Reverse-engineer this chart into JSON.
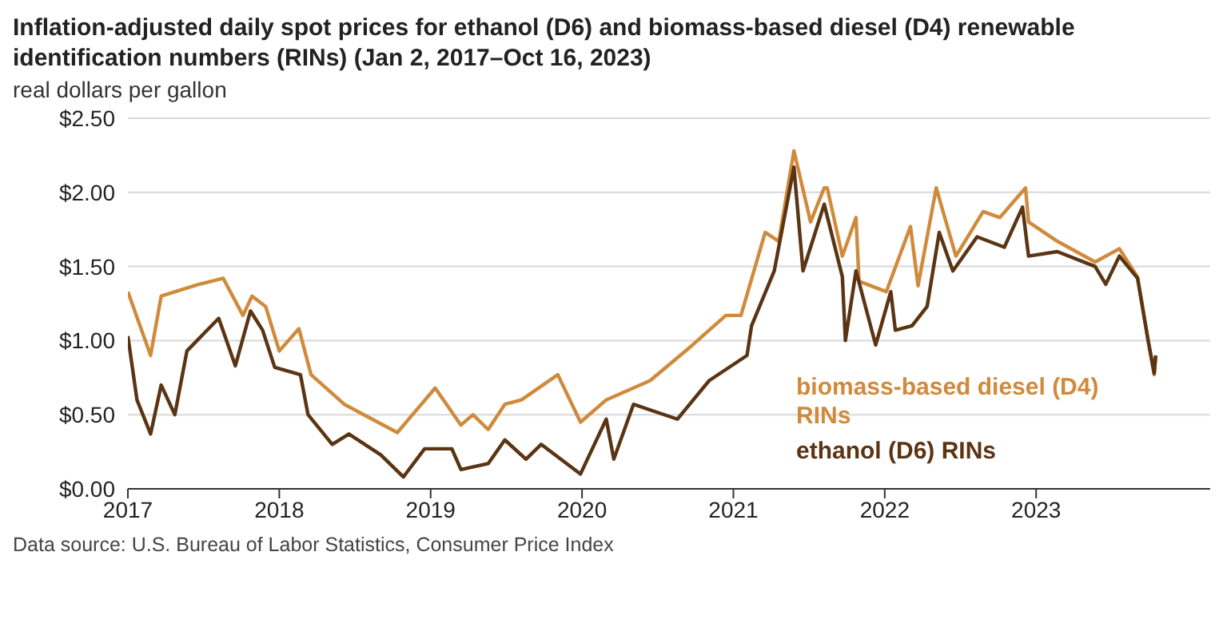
{
  "chart_data": {
    "type": "line",
    "title": "Inflation-adjusted daily spot prices for ethanol (D6) and biomass-based diesel (D4) renewable identification numbers (RINs) (Jan 2, 2017–Oct 16, 2023)",
    "ylabel": "real dollars per gallon",
    "annotations": [
      "Data source: U.S. Bureau of Labor Statistics, Consumer Price Index"
    ],
    "xlim": [
      2017,
      2024.15
    ],
    "xticks": [
      2017,
      2018,
      2019,
      2020,
      2021,
      2022,
      2023
    ],
    "ylim": [
      0,
      2.5
    ],
    "yticks": [
      {
        "value": 0,
        "label": "$0.00"
      },
      {
        "value": 0.5,
        "label": "$0.50"
      },
      {
        "value": 1,
        "label": "$1.00"
      },
      {
        "value": 1.5,
        "label": "$1.50"
      },
      {
        "value": 2,
        "label": "$2.00"
      },
      {
        "value": 2.5,
        "label": "$2.50"
      }
    ],
    "grid": "y",
    "marker": "none",
    "line_style": "solid",
    "series": [
      {
        "name": "biomass-based diesel (D4) RINs",
        "color": "#d08a3c",
        "x": [
          2017.0,
          2017.15,
          2017.22,
          2017.47,
          2017.63,
          2017.76,
          2017.82,
          2017.91,
          2018.0,
          2018.13,
          2018.21,
          2018.43,
          2018.78,
          2019.03,
          2019.2,
          2019.28,
          2019.38,
          2019.49,
          2019.6,
          2019.84,
          2019.99,
          2020.16,
          2020.45,
          2020.73,
          2020.95,
          2021.05,
          2021.21,
          2021.3,
          2021.4,
          2021.51,
          2021.6,
          2021.62,
          2021.72,
          2021.81,
          2021.83,
          2022.01,
          2022.17,
          2022.22,
          2022.34,
          2022.47,
          2022.65,
          2022.76,
          2022.93,
          2022.95,
          2023.14,
          2023.39,
          2023.55,
          2023.67,
          2023.74,
          2023.78,
          2023.79
        ],
        "values": [
          1.33,
          0.9,
          1.3,
          1.38,
          1.42,
          1.17,
          1.3,
          1.23,
          0.93,
          1.08,
          0.77,
          0.57,
          0.38,
          0.68,
          0.43,
          0.5,
          0.4,
          0.57,
          0.6,
          0.77,
          0.45,
          0.6,
          0.73,
          0.97,
          1.17,
          1.17,
          1.73,
          1.67,
          2.28,
          1.8,
          2.03,
          2.03,
          1.57,
          1.83,
          1.4,
          1.33,
          1.77,
          1.37,
          2.03,
          1.57,
          1.87,
          1.83,
          2.03,
          1.8,
          1.67,
          1.53,
          1.62,
          1.43,
          1.0,
          0.77,
          0.9
        ]
      },
      {
        "name": "ethanol (D6) RINs",
        "color": "#5a3413",
        "x": [
          2017.0,
          2017.06,
          2017.15,
          2017.22,
          2017.31,
          2017.39,
          2017.6,
          2017.71,
          2017.81,
          2017.89,
          2017.97,
          2018.14,
          2018.19,
          2018.35,
          2018.46,
          2018.67,
          2018.82,
          2018.96,
          2019.14,
          2019.2,
          2019.38,
          2019.49,
          2019.63,
          2019.73,
          2019.99,
          2020.16,
          2020.21,
          2020.34,
          2020.63,
          2020.84,
          2021.09,
          2021.12,
          2021.27,
          2021.4,
          2021.46,
          2021.51,
          2021.6,
          2021.72,
          2021.74,
          2021.81,
          2021.94,
          2022.04,
          2022.07,
          2022.18,
          2022.28,
          2022.36,
          2022.45,
          2022.61,
          2022.79,
          2022.91,
          2022.95,
          2023.14,
          2023.39,
          2023.46,
          2023.55,
          2023.67,
          2023.74,
          2023.78,
          2023.79
        ],
        "values": [
          1.03,
          0.6,
          0.37,
          0.7,
          0.5,
          0.93,
          1.15,
          0.83,
          1.2,
          1.07,
          0.82,
          0.77,
          0.5,
          0.3,
          0.37,
          0.23,
          0.08,
          0.27,
          0.27,
          0.13,
          0.17,
          0.33,
          0.2,
          0.3,
          0.1,
          0.47,
          0.2,
          0.57,
          0.47,
          0.73,
          0.9,
          1.1,
          1.47,
          2.17,
          1.47,
          1.63,
          1.92,
          1.43,
          1.0,
          1.47,
          0.97,
          1.33,
          1.07,
          1.1,
          1.23,
          1.73,
          1.47,
          1.7,
          1.63,
          1.9,
          1.57,
          1.6,
          1.5,
          1.38,
          1.57,
          1.42,
          1.0,
          0.78,
          0.9
        ]
      }
    ]
  }
}
